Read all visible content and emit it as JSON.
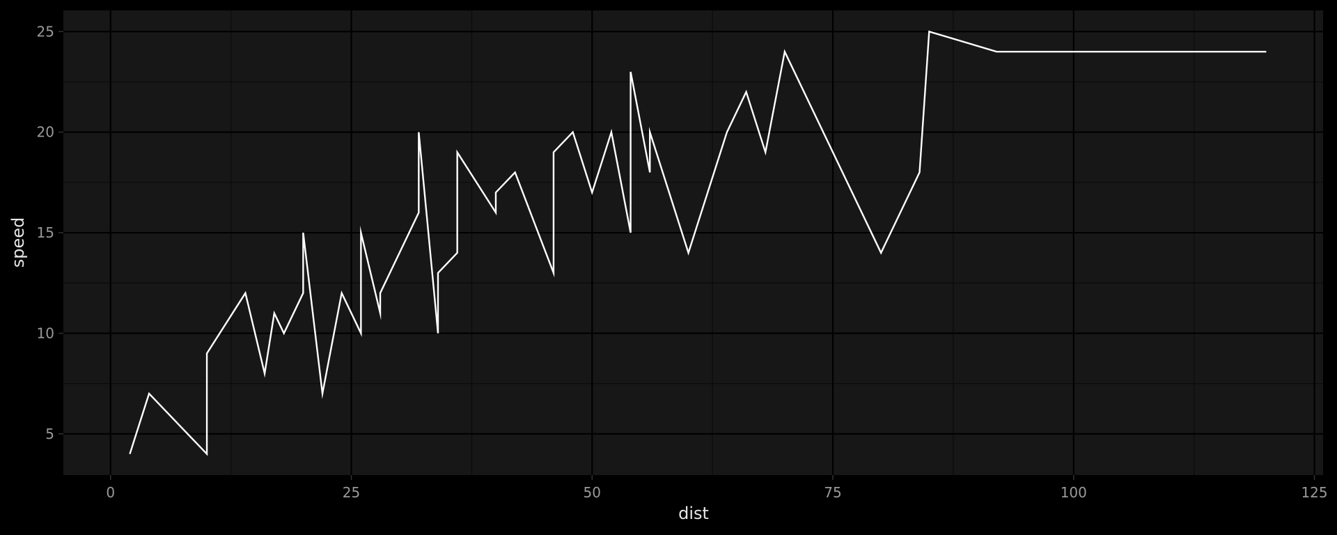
{
  "chart_data": {
    "type": "line",
    "title": "",
    "xlabel": "dist",
    "ylabel": "speed",
    "xlim": [
      -4.9,
      125.9
    ],
    "ylim": [
      2.95,
      26.05
    ],
    "x_ticks": [
      0,
      25,
      50,
      75,
      100,
      125
    ],
    "x_tick_labels": [
      "0",
      "25",
      "50",
      "75",
      "100",
      "125"
    ],
    "y_ticks": [
      5,
      10,
      15,
      20,
      25
    ],
    "y_tick_labels": [
      "5",
      "10",
      "15",
      "20",
      "25"
    ],
    "grid": true,
    "legend": "none",
    "colors": {
      "page_background": "#000000",
      "panel_background": "#171717",
      "grid_major": "#000000",
      "grid_minor": "#0b0b0b",
      "line": "#ffffff",
      "tick_label": "#9a9a9a",
      "axis_title": "#e6e6e6"
    },
    "series": [
      {
        "points": [
          [
            2,
            4
          ],
          [
            4,
            7
          ],
          [
            10,
            4
          ],
          [
            10,
            9
          ],
          [
            14,
            12
          ],
          [
            16,
            8
          ],
          [
            17,
            11
          ],
          [
            18,
            10
          ],
          [
            20,
            12
          ],
          [
            20,
            15
          ],
          [
            22,
            7
          ],
          [
            24,
            12
          ],
          [
            26,
            10
          ],
          [
            26,
            15
          ],
          [
            28,
            11
          ],
          [
            28,
            12
          ],
          [
            32,
            16
          ],
          [
            32,
            20
          ],
          [
            34,
            10
          ],
          [
            34,
            13
          ],
          [
            36,
            14
          ],
          [
            36,
            19
          ],
          [
            40,
            16
          ],
          [
            40,
            17
          ],
          [
            42,
            18
          ],
          [
            46,
            13
          ],
          [
            46,
            19
          ],
          [
            48,
            20
          ],
          [
            50,
            17
          ],
          [
            52,
            20
          ],
          [
            54,
            15
          ],
          [
            54,
            23
          ],
          [
            56,
            18
          ],
          [
            56,
            20
          ],
          [
            60,
            14
          ],
          [
            64,
            20
          ],
          [
            66,
            22
          ],
          [
            68,
            19
          ],
          [
            70,
            24
          ],
          [
            80,
            14
          ],
          [
            84,
            18
          ],
          [
            85,
            25
          ],
          [
            92,
            24
          ],
          [
            120,
            24
          ]
        ]
      }
    ]
  }
}
